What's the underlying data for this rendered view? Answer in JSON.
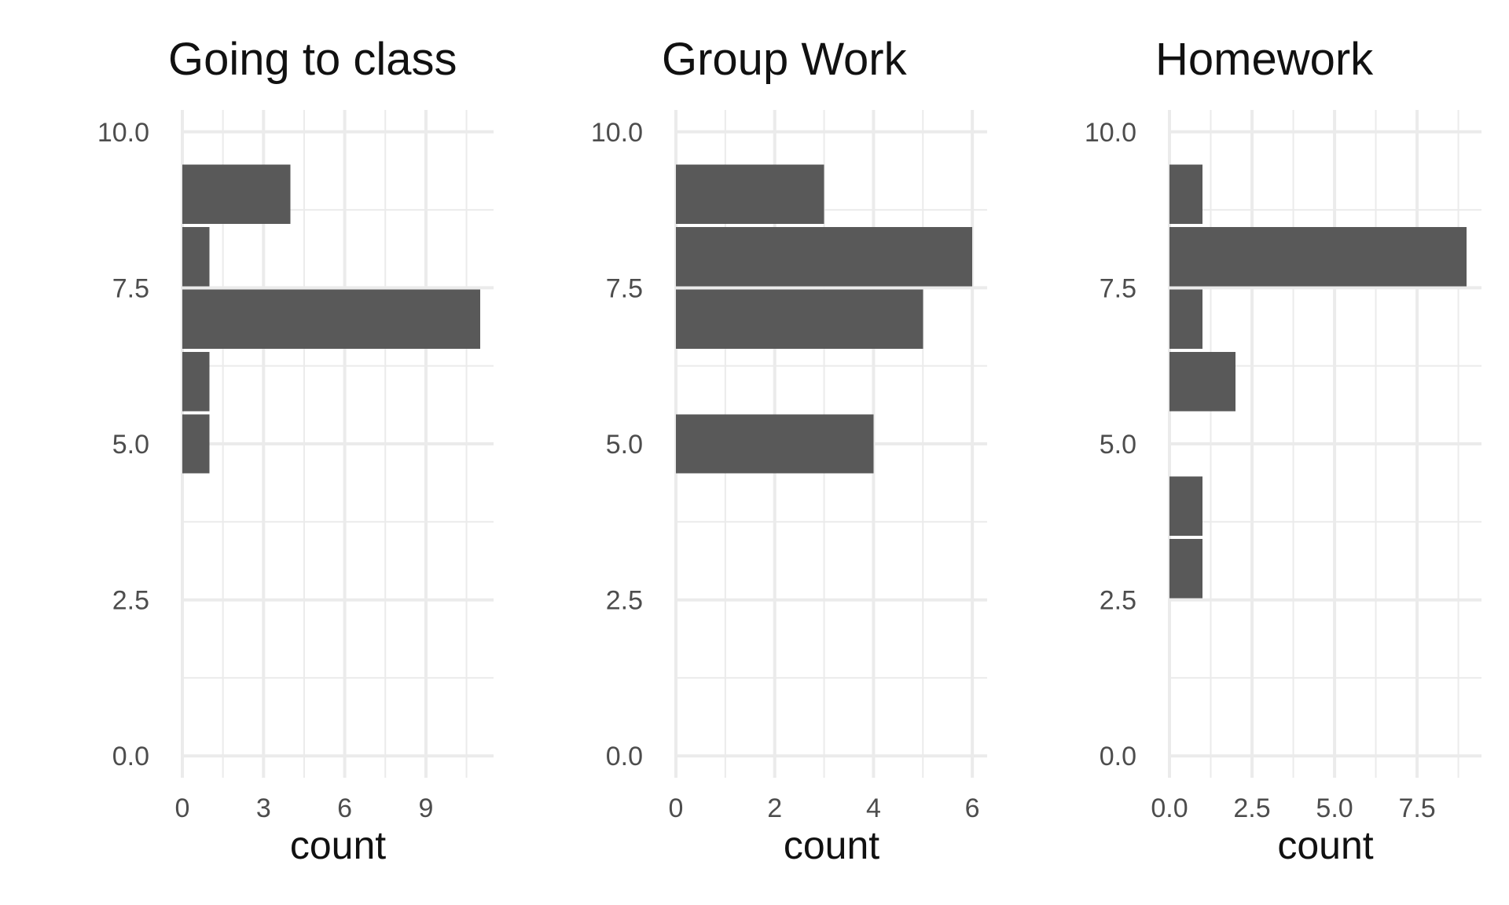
{
  "chart_data": [
    {
      "type": "bar",
      "orientation": "horizontal",
      "title": "Going to class",
      "xlabel": "count",
      "ylabel": "",
      "xlim": [
        0,
        11.5
      ],
      "ylim": [
        -0.35,
        10.35
      ],
      "x_ticks": [
        0,
        3,
        6,
        9
      ],
      "x_tick_labels": [
        "0",
        "3",
        "6",
        "9"
      ],
      "y_ticks": [
        0,
        2.5,
        5,
        7.5,
        10
      ],
      "y_tick_labels": [
        "0.0",
        "2.5",
        "5.0",
        "7.5",
        "10.0"
      ],
      "bin_width": 1,
      "bins": [
        5,
        6,
        7,
        8,
        9
      ],
      "values": [
        1,
        1,
        11,
        1,
        4
      ],
      "bar_color": "#595959",
      "grid": true
    },
    {
      "type": "bar",
      "orientation": "horizontal",
      "title": "Group Work",
      "xlabel": "count",
      "ylabel": "",
      "xlim": [
        0,
        6.3
      ],
      "ylim": [
        -0.35,
        10.35
      ],
      "x_ticks": [
        0,
        2,
        4,
        6
      ],
      "x_tick_labels": [
        "0",
        "2",
        "4",
        "6"
      ],
      "y_ticks": [
        0,
        2.5,
        5,
        7.5,
        10
      ],
      "y_tick_labels": [
        "0.0",
        "2.5",
        "5.0",
        "7.5",
        "10.0"
      ],
      "bin_width": 1,
      "bins": [
        5,
        7,
        8,
        9
      ],
      "values": [
        4,
        5,
        6,
        3
      ],
      "bar_color": "#595959",
      "grid": true
    },
    {
      "type": "bar",
      "orientation": "horizontal",
      "title": "Homework",
      "xlabel": "count",
      "ylabel": "",
      "xlim": [
        0,
        9.45
      ],
      "ylim": [
        -0.35,
        10.35
      ],
      "x_ticks": [
        0,
        2.5,
        5,
        7.5
      ],
      "x_tick_labels": [
        "0.0",
        "2.5",
        "5.0",
        "7.5"
      ],
      "y_ticks": [
        0,
        2.5,
        5,
        7.5,
        10
      ],
      "y_tick_labels": [
        "0.0",
        "2.5",
        "5.0",
        "7.5",
        "10.0"
      ],
      "bin_width": 1,
      "bins": [
        3,
        4,
        6,
        7,
        8,
        9
      ],
      "values": [
        1,
        1,
        2,
        1,
        9,
        1
      ],
      "bar_color": "#595959",
      "grid": true
    }
  ]
}
